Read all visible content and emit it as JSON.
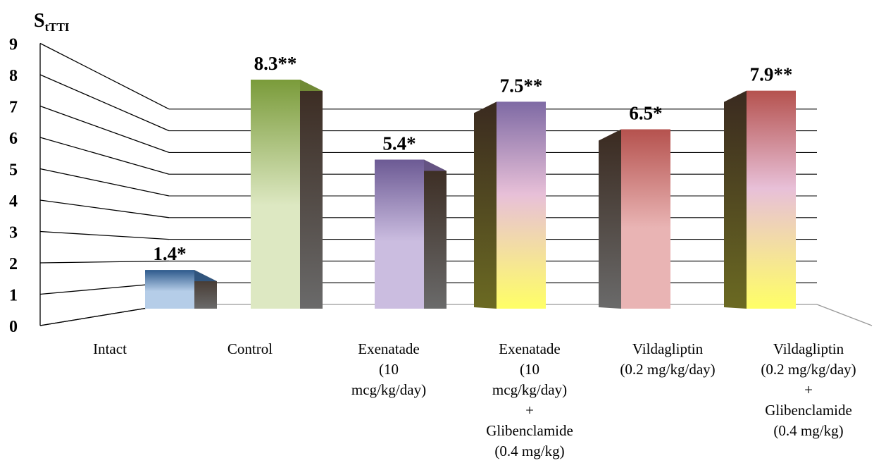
{
  "chart_data": {
    "type": "bar",
    "title": "",
    "ylabel": "S",
    "ylabel_sub": "tTTI",
    "xlabel": "",
    "ylim": [
      0,
      9
    ],
    "yticks": [
      "0",
      "1",
      "2",
      "3",
      "4",
      "5",
      "6",
      "7",
      "8",
      "9"
    ],
    "grid": true,
    "categories": [
      [
        "Intact"
      ],
      [
        "Control"
      ],
      [
        "Exenatade",
        "(10",
        "mcg/kg/day)"
      ],
      [
        "Exenatade",
        "(10",
        "mcg/kg/day)",
        "+",
        "Glibenclamide",
        "(0.4 mg/kg)"
      ],
      [
        "Vildagliptin",
        "(0.2 mg/kg/day)"
      ],
      [
        "Vildagliptin",
        "(0.2 mg/kg/day)",
        "+",
        "Glibenclamide",
        "(0.4 mg/kg)"
      ]
    ],
    "values": [
      1.4,
      8.3,
      5.4,
      7.5,
      6.5,
      7.9
    ],
    "data_labels": [
      "1.4*",
      "8.3**",
      "5.4*",
      "7.5**",
      "6.5*",
      "7.9**"
    ],
    "colors": {
      "intact": [
        "#2e5a8c",
        "#b5cde8"
      ],
      "control": [
        "#7a9b3a",
        "#dde8c2"
      ],
      "exenatade": [
        "#6c5a94",
        "#cbbde0"
      ],
      "exenatade_glib": [
        "#7e6aa4",
        "#ffff66"
      ],
      "vildagliptin": [
        "#b5524e",
        "#e9b4b4"
      ],
      "vildagliptin_glib": [
        "#b5524e",
        "#ffff66"
      ]
    }
  }
}
